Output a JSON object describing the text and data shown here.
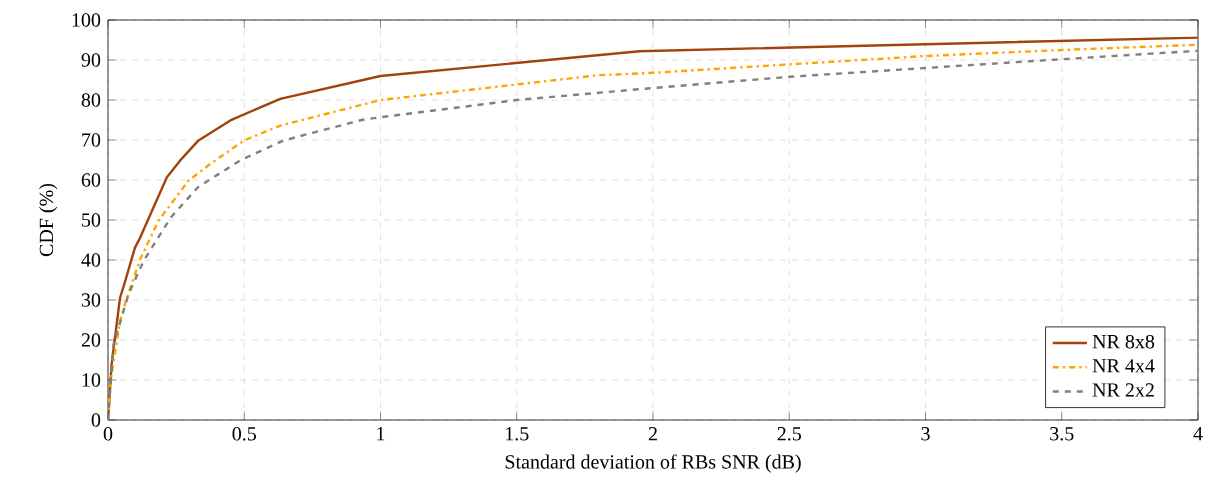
{
  "chart_data": {
    "type": "line",
    "xlabel": "Standard deviation of RBs SNR (dB)",
    "ylabel": "CDF (%)",
    "xlim": [
      0,
      4
    ],
    "ylim": [
      0,
      100
    ],
    "xticks": [
      0,
      0.5,
      1,
      1.5,
      2,
      2.5,
      3,
      3.5,
      4
    ],
    "yticks": [
      0,
      10,
      20,
      30,
      40,
      50,
      60,
      70,
      80,
      90,
      100
    ],
    "grid": true,
    "legend": "bottom right",
    "marker": "none",
    "series": [
      {
        "name": "NR 8x8",
        "color": "#a0440c",
        "line_style": "solid",
        "x": [
          0,
          0.013,
          0.044,
          0.063,
          0.099,
          0.118,
          0.216,
          0.265,
          0.332,
          0.449,
          0.632,
          1.0,
          1.95,
          4
        ],
        "values": [
          0,
          13.8,
          30.5,
          34.7,
          43.1,
          45.6,
          60.7,
          64.9,
          69.9,
          74.9,
          80.3,
          86,
          92.2,
          95.6
        ]
      },
      {
        "name": "NR 4x4",
        "color": "#ffa500",
        "line_style": "dashdot",
        "x": [
          0,
          0.01,
          0.044,
          0.069,
          0.118,
          0.185,
          0.295,
          0.375,
          0.5,
          0.632,
          1.0,
          1.8,
          2,
          3,
          3.5,
          4
        ],
        "values": [
          0,
          10,
          24.7,
          30.5,
          40.2,
          49.8,
          59.8,
          64,
          69.9,
          73.6,
          80,
          86.2,
          86.8,
          91,
          92.5,
          93.8
        ]
      },
      {
        "name": "NR 2x2",
        "color": "#808080",
        "line_style": "dashed",
        "x": [
          0,
          0.02,
          0.075,
          0.13,
          0.23,
          0.33,
          0.485,
          0.645,
          0.93,
          1.0,
          1.5,
          2,
          2.5,
          3,
          3.5,
          4
        ],
        "values": [
          0,
          18.8,
          31.4,
          39.7,
          50.6,
          58.2,
          64.9,
          69.9,
          75,
          75.7,
          80,
          83,
          85.8,
          88,
          90.2,
          92.3
        ]
      }
    ]
  }
}
